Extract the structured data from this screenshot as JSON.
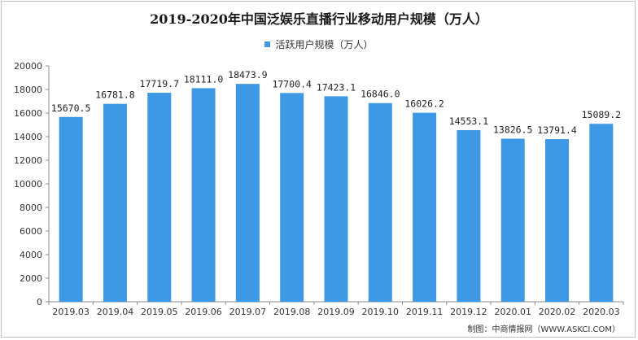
{
  "chart_data": {
    "type": "bar",
    "title": "2019-2020年中国泛娱乐直播行业移动用户规模（万人）",
    "legend": "活跃用户规模（万人）",
    "categories": [
      "2019.03",
      "2019.04",
      "2019.05",
      "2019.06",
      "2019.07",
      "2019.08",
      "2019.09",
      "2019.10",
      "2019.11",
      "2019.12",
      "2020.01",
      "2020.02",
      "2020.03"
    ],
    "series": [
      {
        "name": "活跃用户规模（万人）",
        "values": [
          15670.5,
          16781.8,
          17719.7,
          18111.0,
          18473.9,
          17700.4,
          17423.1,
          16846.0,
          16026.2,
          14553.1,
          13826.5,
          13791.4,
          15089.2
        ],
        "labels": [
          "15670.5",
          "16781.8",
          "17719.7",
          "18111.0",
          "18473.9",
          "17700.4",
          "17423.1",
          "16846.0",
          "16026.2",
          "14553.1",
          "13826.5",
          "13791.4",
          "15089.2"
        ]
      }
    ],
    "ylim": [
      0,
      20000
    ],
    "yticks": [
      0,
      2000,
      4000,
      6000,
      8000,
      10000,
      12000,
      14000,
      16000,
      18000,
      20000
    ],
    "bar_color": "#3d99e6",
    "xlabel": "",
    "ylabel": "",
    "legend_position": "top-center",
    "grid": false
  },
  "credit": "制图：中商情报网（WWW.ASKCI.COM）"
}
